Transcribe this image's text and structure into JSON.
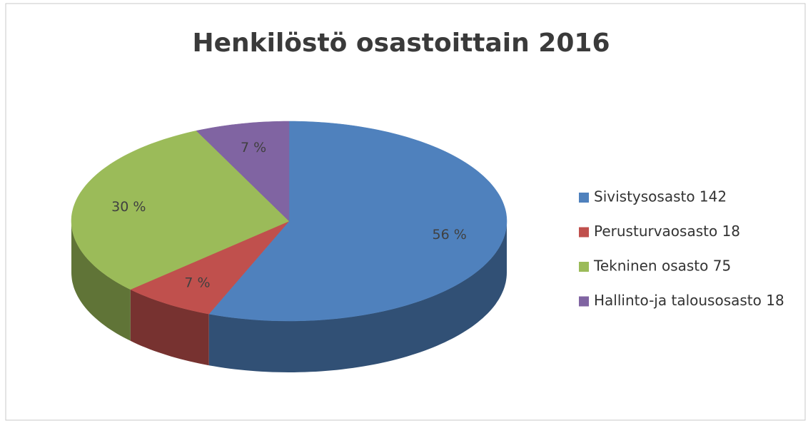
{
  "chart_data": {
    "type": "pie3d",
    "title": "Henkilöstö osastoittain 2016",
    "categories": [
      "Sivistysosasto 142",
      "Perusturvaosasto 18",
      "Tekninen osasto 75",
      "Hallinto-ja talousosasto 18"
    ],
    "values": [
      56,
      7,
      30,
      7
    ],
    "value_labels": [
      "56 %",
      "7 %",
      "30 %",
      "7 %"
    ],
    "colors": [
      "#4f81bd",
      "#c0504d",
      "#9bbb59",
      "#8064a2"
    ],
    "legend": "right"
  }
}
